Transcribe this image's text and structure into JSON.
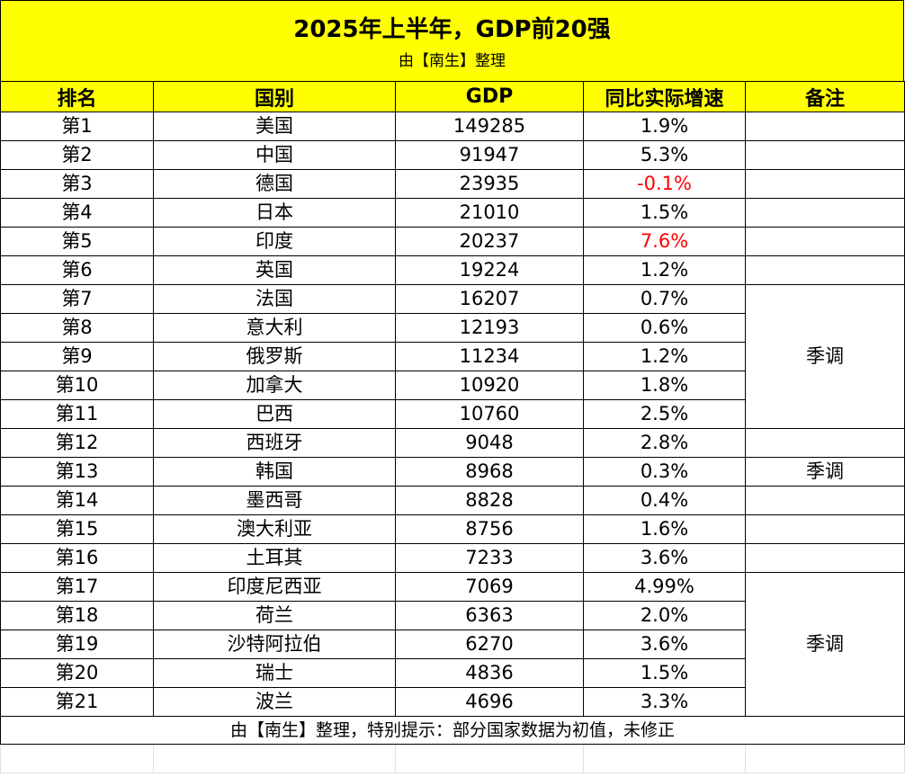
{
  "title": "2025年上半年，GDP前20强",
  "subtitle": "由【南生】整理",
  "headers": [
    "排名",
    "国别",
    "GDP",
    "同比实际增速",
    "备注"
  ],
  "rows": [
    {
      "rank": "第1",
      "country": "美国",
      "gdp": "149285",
      "growth": "1.9%",
      "red": false
    },
    {
      "rank": "第2",
      "country": "中国",
      "gdp": "91947",
      "growth": "5.3%",
      "red": false
    },
    {
      "rank": "第3",
      "country": "德国",
      "gdp": "23935",
      "growth": "-0.1%",
      "red": true
    },
    {
      "rank": "第4",
      "country": "日本",
      "gdp": "21010",
      "growth": "1.5%",
      "red": false
    },
    {
      "rank": "第5",
      "country": "印度",
      "gdp": "20237",
      "growth": "7.6%",
      "red": true
    },
    {
      "rank": "第6",
      "country": "英国",
      "gdp": "19224",
      "growth": "1.2%",
      "red": false
    },
    {
      "rank": "第7",
      "country": "法国",
      "gdp": "16207",
      "growth": "0.7%",
      "red": false
    },
    {
      "rank": "第8",
      "country": "意大利",
      "gdp": "12193",
      "growth": "0.6%",
      "red": false
    },
    {
      "rank": "第9",
      "country": "俄罗斯",
      "gdp": "11234",
      "growth": "1.2%",
      "red": false
    },
    {
      "rank": "第10",
      "country": "加拿大",
      "gdp": "10920",
      "growth": "1.8%",
      "red": false
    },
    {
      "rank": "第11",
      "country": "巴西",
      "gdp": "10760",
      "growth": "2.5%",
      "red": false
    },
    {
      "rank": "第12",
      "country": "西班牙",
      "gdp": "9048",
      "growth": "2.8%",
      "red": false
    },
    {
      "rank": "第13",
      "country": "韩国",
      "gdp": "8968",
      "growth": "0.3%",
      "red": false
    },
    {
      "rank": "第14",
      "country": "墨西哥",
      "gdp": "8828",
      "growth": "0.4%",
      "red": false
    },
    {
      "rank": "第15",
      "country": "澳大利亚",
      "gdp": "8756",
      "growth": "1.6%",
      "red": false
    },
    {
      "rank": "第16",
      "country": "土耳其",
      "gdp": "7233",
      "growth": "3.6%",
      "red": false
    },
    {
      "rank": "第17",
      "country": "印度尼西亚",
      "gdp": "7069",
      "growth": "4.99%",
      "red": false
    },
    {
      "rank": "第18",
      "country": "荷兰",
      "gdp": "6363",
      "growth": "2.0%",
      "red": false
    },
    {
      "rank": "第19",
      "country": "沙特阿拉伯",
      "gdp": "6270",
      "growth": "3.6%",
      "red": false
    },
    {
      "rank": "第20",
      "country": "瑞士",
      "gdp": "4836",
      "growth": "1.5%",
      "red": false
    },
    {
      "rank": "第21",
      "country": "波兰",
      "gdp": "4696",
      "growth": "3.3%",
      "red": false
    }
  ],
  "notes": [
    {
      "start_row": 6,
      "span": 5,
      "text": "季调"
    },
    {
      "start_row": 12,
      "span": 1,
      "text": "季调"
    },
    {
      "start_row": 16,
      "span": 5,
      "text": "季调"
    }
  ],
  "footer": "由【南生】整理，特别提示：部分国家数据为初值，未修正",
  "colors": {
    "header_bg": "#ffff00",
    "highlight_text": "#ff0000"
  }
}
